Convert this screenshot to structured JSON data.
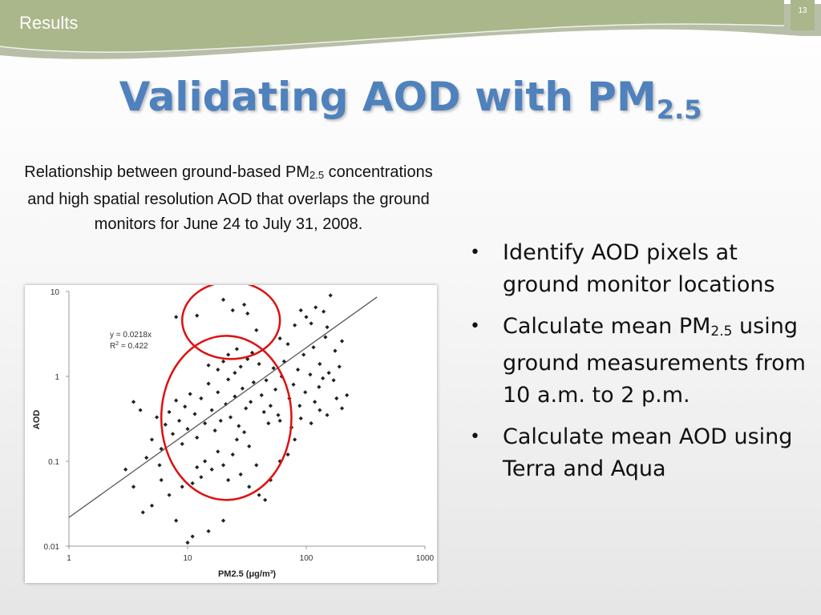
{
  "header": {
    "section": "Results",
    "page_number": "13",
    "band_color": "#aab78a"
  },
  "title": {
    "main": "Validating AOD with PM",
    "subscript": "2.5"
  },
  "caption": {
    "pre": "Relationship between ground-based PM",
    "sub": "2.5",
    "post": " concentrations and high spatial resolution AOD that overlaps the ground monitors for June 24 to July 31, 2008."
  },
  "bullets": [
    {
      "text": "Identify AOD pixels at ground monitor locations"
    },
    {
      "text": "Calculate mean PM",
      "sub": "2.5",
      "after": " using ground measurements from 10 a.m. to 2 p.m."
    },
    {
      "text": "Calculate mean AOD using Terra and Aqua"
    }
  ],
  "bullet_char": "•",
  "chart_data": {
    "type": "scatter",
    "x_scale": "log",
    "y_scale": "log",
    "xlim": [
      1,
      1000
    ],
    "ylim": [
      0.01,
      10
    ],
    "xlabel": "PM2.5 (μg/m³)",
    "ylabel": "AOD",
    "x_ticks": [
      1,
      10,
      100,
      1000
    ],
    "y_ticks": [
      0.01,
      0.1,
      1,
      10
    ],
    "x_tick_labels": [
      "1",
      "10",
      "100",
      "1000"
    ],
    "y_tick_labels": [
      "0.01",
      "0.1",
      "1",
      "10"
    ],
    "trendline": {
      "slope": 0.0218,
      "equation": "y = 0.0218x",
      "r2_prefix": "R",
      "r2_sup": "2",
      "r2_suffix": " = 0.422"
    },
    "point_color": "#222222",
    "highlight_color": "#dd1111",
    "grid": false,
    "highlights": [
      {
        "x_range": [
          9,
          60
        ],
        "y_range": [
          1.6,
          13
        ]
      },
      {
        "x_range": [
          6,
          75
        ],
        "y_range": [
          0.035,
          3
        ]
      }
    ],
    "points": [
      [
        8,
        5
      ],
      [
        12,
        5.2
      ],
      [
        20,
        8
      ],
      [
        24,
        6
      ],
      [
        30,
        7
      ],
      [
        32,
        5.5
      ],
      [
        38,
        3.5
      ],
      [
        60,
        2.8
      ],
      [
        80,
        4
      ],
      [
        90,
        6
      ],
      [
        100,
        5
      ],
      [
        110,
        4.2
      ],
      [
        120,
        6.5
      ],
      [
        140,
        5.8
      ],
      [
        160,
        9
      ],
      [
        150,
        3.8
      ],
      [
        65,
        1.5
      ],
      [
        70,
        2.4
      ],
      [
        85,
        1.2
      ],
      [
        95,
        1.8
      ],
      [
        115,
        2.2
      ],
      [
        130,
        1.4
      ],
      [
        145,
        2.9
      ],
      [
        155,
        1.1
      ],
      [
        175,
        2.0
      ],
      [
        200,
        2.6
      ],
      [
        190,
        1.3
      ],
      [
        170,
        0.9
      ],
      [
        55,
        0.7
      ],
      [
        62,
        1.0
      ],
      [
        72,
        0.55
      ],
      [
        78,
        0.8
      ],
      [
        88,
        0.45
      ],
      [
        98,
        0.65
      ],
      [
        108,
        1.05
      ],
      [
        118,
        0.5
      ],
      [
        128,
        0.75
      ],
      [
        138,
        0.95
      ],
      [
        42,
        0.6
      ],
      [
        46,
        0.9
      ],
      [
        50,
        0.45
      ],
      [
        53,
        1.25
      ],
      [
        58,
        0.35
      ],
      [
        48,
        0.28
      ],
      [
        44,
        0.38
      ],
      [
        40,
        1.4
      ],
      [
        36,
        0.85
      ],
      [
        34,
        0.5
      ],
      [
        31,
        0.42
      ],
      [
        29,
        0.72
      ],
      [
        27,
        0.26
      ],
      [
        25,
        0.58
      ],
      [
        23,
        0.33
      ],
      [
        22,
        0.92
      ],
      [
        21,
        0.47
      ],
      [
        19,
        0.3
      ],
      [
        18,
        0.65
      ],
      [
        17,
        0.23
      ],
      [
        16,
        0.4
      ],
      [
        15,
        0.82
      ],
      [
        14,
        0.28
      ],
      [
        13,
        0.55
      ],
      [
        12,
        0.19
      ],
      [
        11.5,
        0.36
      ],
      [
        10.5,
        0.62
      ],
      [
        10,
        0.24
      ],
      [
        9.5,
        0.44
      ],
      [
        9,
        0.16
      ],
      [
        8.5,
        0.3
      ],
      [
        8,
        0.52
      ],
      [
        7.5,
        0.21
      ],
      [
        7,
        0.38
      ],
      [
        6.5,
        0.27
      ],
      [
        6,
        0.14
      ],
      [
        5.5,
        0.33
      ],
      [
        5,
        0.18
      ],
      [
        4.5,
        0.11
      ],
      [
        26,
        0.18
      ],
      [
        24,
        0.12
      ],
      [
        30,
        0.22
      ],
      [
        33,
        0.15
      ],
      [
        20,
        0.09
      ],
      [
        18,
        0.13
      ],
      [
        16,
        0.08
      ],
      [
        28,
        0.07
      ],
      [
        22,
        0.06
      ],
      [
        14,
        0.1
      ],
      [
        13,
        0.065
      ],
      [
        12,
        0.085
      ],
      [
        11,
        0.055
      ],
      [
        25,
        1.1
      ],
      [
        28,
        1.3
      ],
      [
        20,
        1.5
      ],
      [
        18,
        1.2
      ],
      [
        15,
        1.35
      ],
      [
        32,
        1.6
      ],
      [
        35,
        1.9
      ],
      [
        26,
        2.1
      ],
      [
        22,
        1.8
      ],
      [
        60,
        0.3
      ],
      [
        75,
        0.25
      ],
      [
        90,
        0.32
      ],
      [
        110,
        0.28
      ],
      [
        130,
        0.4
      ],
      [
        150,
        0.35
      ],
      [
        180,
        0.55
      ],
      [
        220,
        0.6
      ],
      [
        200,
        0.42
      ],
      [
        4,
        0.4
      ],
      [
        3.5,
        0.5
      ],
      [
        3,
        0.08
      ],
      [
        3.5,
        0.05
      ],
      [
        4.2,
        0.025
      ],
      [
        5,
        0.03
      ],
      [
        8,
        0.02
      ],
      [
        10,
        0.011
      ],
      [
        11,
        0.013
      ],
      [
        15,
        0.015
      ],
      [
        20,
        0.02
      ],
      [
        40,
        0.04
      ],
      [
        45,
        0.035
      ],
      [
        33,
        0.05
      ],
      [
        50,
        0.06
      ],
      [
        70,
        0.12
      ],
      [
        60,
        0.1
      ],
      [
        38,
        0.09
      ],
      [
        80,
        0.18
      ],
      [
        6,
        0.06
      ],
      [
        7,
        0.04
      ],
      [
        9,
        0.05
      ],
      [
        5.8,
        0.09
      ]
    ]
  }
}
